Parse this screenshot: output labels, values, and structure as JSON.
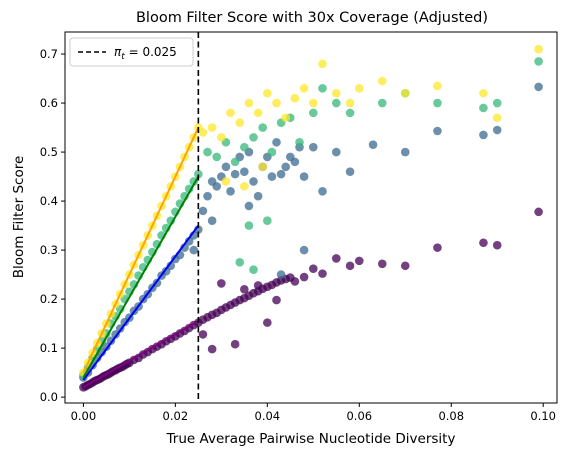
{
  "chart_data": {
    "type": "scatter",
    "title": "Bloom Filter Score with 30x Coverage (Adjusted)",
    "xlabel": "True Average Pairwise Nucleotide Diversity",
    "ylabel": "Bloom Filter Score",
    "xlim": [
      -0.004,
      0.103
    ],
    "ylim": [
      -0.012,
      0.745
    ],
    "xticks": [
      0.0,
      0.02,
      0.04,
      0.06,
      0.08,
      0.1
    ],
    "xtick_labels": [
      "0.00",
      "0.02",
      "0.04",
      "0.06",
      "0.08",
      "0.10"
    ],
    "yticks": [
      0.0,
      0.1,
      0.2,
      0.3,
      0.4,
      0.5,
      0.6,
      0.7
    ],
    "ytick_labels": [
      "0.0",
      "0.1",
      "0.2",
      "0.3",
      "0.4",
      "0.5",
      "0.6",
      "0.7"
    ],
    "grid": false,
    "legend": {
      "placement": "top-left",
      "entries": [
        {
          "label": "π_t = 0.025",
          "label_main": "π",
          "label_sub": "t",
          "label_rest": " = 0.025",
          "style": "dashed",
          "color": "#000000"
        }
      ]
    },
    "threshold": {
      "x": 0.025,
      "style": "dashed",
      "color": "#000000"
    },
    "series": [
      {
        "color": "#440154",
        "fit_color": "#800080",
        "fit": {
          "x": [
            0.0,
            0.025
          ],
          "y": [
            0.02,
            0.155
          ]
        },
        "x": [
          0.0,
          0.0005,
          0.001,
          0.0015,
          0.002,
          0.0025,
          0.003,
          0.0035,
          0.004,
          0.0045,
          0.005,
          0.0055,
          0.006,
          0.0065,
          0.007,
          0.0075,
          0.008,
          0.0085,
          0.009,
          0.0095,
          0.01,
          0.011,
          0.012,
          0.013,
          0.014,
          0.015,
          0.016,
          0.017,
          0.018,
          0.019,
          0.02,
          0.021,
          0.022,
          0.023,
          0.024,
          0.025,
          0.026,
          0.027,
          0.028,
          0.029,
          0.03,
          0.031,
          0.032,
          0.033,
          0.034,
          0.035,
          0.036,
          0.037,
          0.038,
          0.039,
          0.04,
          0.041,
          0.042,
          0.043,
          0.044,
          0.045,
          0.046,
          0.048,
          0.05,
          0.052,
          0.055,
          0.058,
          0.06,
          0.065,
          0.07,
          0.077,
          0.087,
          0.09,
          0.099,
          0.026,
          0.028,
          0.033,
          0.038,
          0.04,
          0.042,
          0.035,
          0.03
        ],
        "y": [
          0.02,
          0.022,
          0.025,
          0.027,
          0.03,
          0.033,
          0.035,
          0.037,
          0.04,
          0.043,
          0.045,
          0.047,
          0.05,
          0.053,
          0.055,
          0.058,
          0.06,
          0.062,
          0.065,
          0.068,
          0.07,
          0.076,
          0.08,
          0.087,
          0.092,
          0.098,
          0.103,
          0.108,
          0.114,
          0.119,
          0.124,
          0.13,
          0.135,
          0.141,
          0.147,
          0.152,
          0.158,
          0.163,
          0.168,
          0.172,
          0.178,
          0.183,
          0.188,
          0.193,
          0.198,
          0.202,
          0.207,
          0.212,
          0.216,
          0.221,
          0.225,
          0.229,
          0.234,
          0.238,
          0.241,
          0.244,
          0.236,
          0.245,
          0.262,
          0.252,
          0.283,
          0.268,
          0.278,
          0.272,
          0.268,
          0.305,
          0.315,
          0.31,
          0.378,
          0.128,
          0.098,
          0.108,
          0.228,
          0.152,
          0.198,
          0.22,
          0.232
        ]
      },
      {
        "color": "#3b6b8f",
        "fit_color": "#0000ff",
        "fit": {
          "x": [
            0.0,
            0.025
          ],
          "y": [
            0.035,
            0.35
          ]
        },
        "x": [
          0.0,
          0.001,
          0.002,
          0.003,
          0.004,
          0.005,
          0.006,
          0.007,
          0.008,
          0.009,
          0.01,
          0.011,
          0.012,
          0.013,
          0.014,
          0.015,
          0.016,
          0.017,
          0.018,
          0.019,
          0.02,
          0.021,
          0.022,
          0.023,
          0.024,
          0.025,
          0.026,
          0.027,
          0.028,
          0.029,
          0.03,
          0.031,
          0.032,
          0.033,
          0.034,
          0.035,
          0.036,
          0.037,
          0.038,
          0.039,
          0.04,
          0.041,
          0.042,
          0.043,
          0.044,
          0.045,
          0.046,
          0.047,
          0.048,
          0.05,
          0.052,
          0.055,
          0.058,
          0.063,
          0.07,
          0.077,
          0.087,
          0.09,
          0.099,
          0.024,
          0.028,
          0.036,
          0.043,
          0.048
        ],
        "y": [
          0.04,
          0.05,
          0.065,
          0.08,
          0.092,
          0.103,
          0.115,
          0.128,
          0.14,
          0.153,
          0.162,
          0.176,
          0.185,
          0.2,
          0.21,
          0.223,
          0.233,
          0.248,
          0.257,
          0.268,
          0.282,
          0.29,
          0.305,
          0.318,
          0.33,
          0.342,
          0.38,
          0.41,
          0.44,
          0.43,
          0.45,
          0.47,
          0.42,
          0.455,
          0.49,
          0.46,
          0.5,
          0.44,
          0.41,
          0.47,
          0.49,
          0.45,
          0.52,
          0.455,
          0.47,
          0.49,
          0.48,
          0.51,
          0.45,
          0.51,
          0.42,
          0.5,
          0.46,
          0.515,
          0.5,
          0.543,
          0.535,
          0.545,
          0.633,
          0.3,
          0.36,
          0.39,
          0.25,
          0.3
        ]
      },
      {
        "color": "#35b779",
        "fit_color": "#008000",
        "fit": {
          "x": [
            0.0,
            0.025
          ],
          "y": [
            0.04,
            0.45
          ]
        },
        "x": [
          0.0,
          0.001,
          0.002,
          0.003,
          0.004,
          0.005,
          0.006,
          0.007,
          0.008,
          0.009,
          0.01,
          0.011,
          0.012,
          0.013,
          0.014,
          0.015,
          0.016,
          0.017,
          0.018,
          0.019,
          0.02,
          0.021,
          0.022,
          0.023,
          0.024,
          0.025,
          0.027,
          0.029,
          0.031,
          0.033,
          0.035,
          0.037,
          0.039,
          0.041,
          0.043,
          0.045,
          0.047,
          0.05,
          0.052,
          0.055,
          0.058,
          0.065,
          0.07,
          0.077,
          0.087,
          0.09,
          0.099,
          0.036,
          0.04,
          0.037,
          0.034
        ],
        "y": [
          0.045,
          0.06,
          0.08,
          0.098,
          0.115,
          0.13,
          0.15,
          0.165,
          0.18,
          0.2,
          0.215,
          0.23,
          0.248,
          0.265,
          0.28,
          0.296,
          0.312,
          0.33,
          0.345,
          0.36,
          0.378,
          0.395,
          0.41,
          0.425,
          0.44,
          0.455,
          0.5,
          0.49,
          0.52,
          0.48,
          0.51,
          0.53,
          0.55,
          0.5,
          0.56,
          0.57,
          0.52,
          0.58,
          0.63,
          0.6,
          0.58,
          0.6,
          0.62,
          0.6,
          0.59,
          0.6,
          0.685,
          0.35,
          0.36,
          0.26,
          0.275
        ]
      },
      {
        "color": "#fde725",
        "fit_color": "#ffa500",
        "fit": {
          "x": [
            0.0,
            0.025
          ],
          "y": [
            0.05,
            0.55
          ]
        },
        "x": [
          0.0,
          0.001,
          0.002,
          0.003,
          0.004,
          0.005,
          0.006,
          0.007,
          0.008,
          0.009,
          0.01,
          0.011,
          0.012,
          0.013,
          0.014,
          0.015,
          0.016,
          0.017,
          0.018,
          0.019,
          0.02,
          0.021,
          0.022,
          0.023,
          0.024,
          0.025,
          0.026,
          0.028,
          0.03,
          0.032,
          0.034,
          0.036,
          0.038,
          0.04,
          0.042,
          0.044,
          0.046,
          0.048,
          0.05,
          0.052,
          0.055,
          0.058,
          0.06,
          0.065,
          0.07,
          0.077,
          0.087,
          0.09,
          0.099,
          0.035,
          0.039,
          0.031
        ],
        "y": [
          0.05,
          0.07,
          0.09,
          0.11,
          0.13,
          0.15,
          0.17,
          0.19,
          0.21,
          0.23,
          0.25,
          0.27,
          0.29,
          0.31,
          0.33,
          0.35,
          0.37,
          0.39,
          0.41,
          0.43,
          0.45,
          0.47,
          0.49,
          0.51,
          0.53,
          0.55,
          0.54,
          0.55,
          0.53,
          0.58,
          0.56,
          0.6,
          0.58,
          0.62,
          0.6,
          0.57,
          0.61,
          0.63,
          0.6,
          0.68,
          0.62,
          0.6,
          0.63,
          0.645,
          0.62,
          0.635,
          0.62,
          0.57,
          0.71,
          0.43,
          0.47,
          0.44
        ]
      }
    ]
  }
}
